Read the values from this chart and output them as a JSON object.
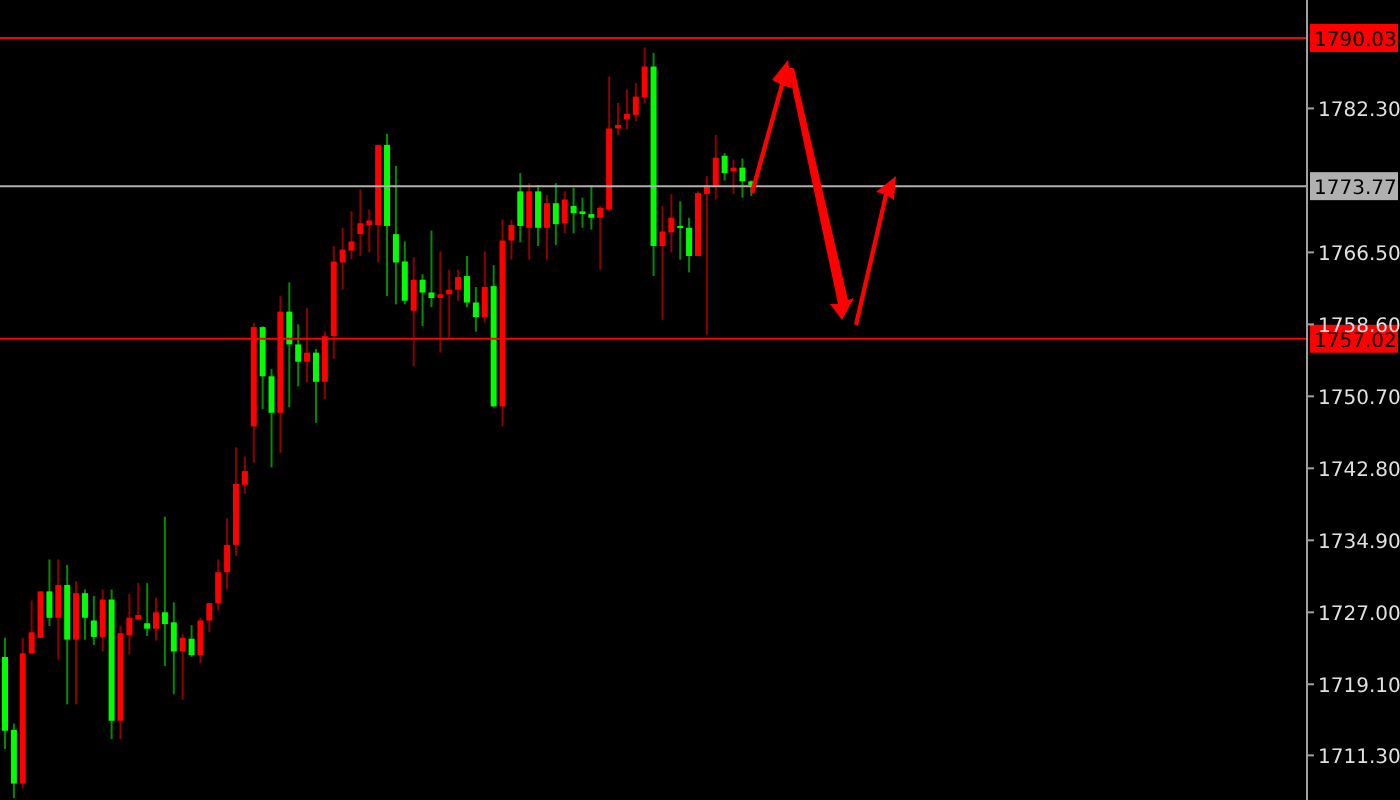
{
  "chart_data": {
    "type": "candlestick",
    "categories": [
      null,
      null,
      null,
      null,
      null,
      null,
      null,
      null,
      null,
      null,
      null,
      null,
      null,
      null,
      null,
      null,
      null,
      null,
      null,
      null,
      null,
      null,
      null,
      null,
      null,
      null,
      null,
      null,
      null,
      null,
      null,
      null,
      null,
      null,
      null,
      null,
      null,
      null,
      null,
      null,
      null,
      null,
      null,
      null,
      null,
      null,
      null,
      null,
      null,
      null,
      null,
      null,
      null,
      null,
      null,
      null,
      null,
      null,
      null,
      null,
      null,
      null,
      null,
      null,
      null,
      null,
      null,
      null,
      null,
      null,
      null,
      null,
      null,
      null,
      null,
      null,
      null,
      null,
      null,
      null,
      null,
      null,
      null,
      null,
      null,
      null,
      null,
      null,
      null,
      null,
      null,
      null,
      null,
      null,
      null,
      null,
      null,
      null,
      null,
      null,
      null,
      null,
      null,
      null,
      null,
      null,
      null,
      null,
      null,
      null,
      null,
      null,
      null,
      null,
      null,
      null,
      null,
      null,
      null,
      null,
      null,
      null,
      null,
      null,
      null,
      null,
      null,
      null,
      null,
      null,
      null,
      null,
      null,
      null,
      null,
      null,
      null,
      null,
      null,
      null,
      null,
      null,
      null,
      null,
      null,
      null,
      null
    ],
    "ohlc": [
      [
        1722.1,
        1724.2,
        1712.0,
        1714.0
      ],
      [
        1714.1,
        1714.8,
        1706.6,
        1708.2
      ],
      [
        1708.2,
        1724.2,
        1707.7,
        1722.5
      ],
      [
        1722.5,
        1728.3,
        1722.4,
        1724.8
      ],
      [
        1724.2,
        1729.3,
        1724.2,
        1729.3
      ],
      [
        1729.3,
        1732.8,
        1725.5,
        1726.4
      ],
      [
        1726.4,
        1732.8,
        1721.8,
        1730.0
      ],
      [
        1730.0,
        1732.2,
        1716.9,
        1724.0
      ],
      [
        1724.0,
        1730.4,
        1716.9,
        1729.1
      ],
      [
        1729.1,
        1729.5,
        1724.0,
        1726.4
      ],
      [
        1726.1,
        1728.8,
        1723.4,
        1724.3
      ],
      [
        1724.3,
        1729.5,
        1722.7,
        1728.4
      ],
      [
        1728.4,
        1729.5,
        1713.1,
        1715.1
      ],
      [
        1715.1,
        1725.5,
        1713.1,
        1724.7
      ],
      [
        1724.5,
        1729.0,
        1722.4,
        1726.4
      ],
      [
        1726.2,
        1730.2,
        1726.2,
        1726.7
      ],
      [
        1725.8,
        1730.2,
        1724.4,
        1725.2
      ],
      [
        1725.2,
        1728.6,
        1723.9,
        1727.0
      ],
      [
        1727.0,
        1737.5,
        1721.1,
        1725.7
      ],
      [
        1725.9,
        1728.1,
        1718.0,
        1722.7
      ],
      [
        1722.7,
        1724.6,
        1717.4,
        1724.2
      ],
      [
        1724.1,
        1725.6,
        1722.1,
        1722.3
      ],
      [
        1722.3,
        1726.4,
        1721.4,
        1726.1
      ],
      [
        1726.1,
        1728.0,
        1724.8,
        1728.0
      ],
      [
        1728.0,
        1732.8,
        1727.2,
        1731.4
      ],
      [
        1731.4,
        1737.3,
        1729.5,
        1734.4
      ],
      [
        1734.4,
        1745.1,
        1733.2,
        1741.1
      ],
      [
        1741.0,
        1744.1,
        1740.0,
        1742.5
      ],
      [
        1747.4,
        1758.8,
        1743.4,
        1758.3
      ],
      [
        1758.3,
        1758.4,
        1749.3,
        1752.9
      ],
      [
        1752.9,
        1753.7,
        1742.9,
        1748.9
      ],
      [
        1748.9,
        1761.7,
        1744.5,
        1760.0
      ],
      [
        1760.0,
        1763.2,
        1749.5,
        1756.4
      ],
      [
        1756.4,
        1758.6,
        1751.8,
        1754.5
      ],
      [
        1754.5,
        1760.4,
        1752.2,
        1755.5
      ],
      [
        1755.5,
        1755.9,
        1747.8,
        1752.3
      ],
      [
        1752.3,
        1757.8,
        1750.4,
        1757.3
      ],
      [
        1757.3,
        1767.2,
        1754.8,
        1765.5
      ],
      [
        1765.4,
        1769.2,
        1762.4,
        1766.8
      ],
      [
        1766.7,
        1771.0,
        1765.7,
        1767.7
      ],
      [
        1768.5,
        1773.4,
        1766.1,
        1769.7
      ],
      [
        1769.5,
        1771.2,
        1766.5,
        1770.0
      ],
      [
        1769.5,
        1778.3,
        1765.4,
        1778.3
      ],
      [
        1778.3,
        1779.5,
        1761.7,
        1769.4
      ],
      [
        1768.5,
        1776.0,
        1760.8,
        1765.4
      ],
      [
        1765.5,
        1767.7,
        1760.8,
        1761.2
      ],
      [
        1760.1,
        1766.0,
        1754.0,
        1763.5
      ],
      [
        1763.5,
        1764.1,
        1758.4,
        1762.1
      ],
      [
        1762.1,
        1768.9,
        1760.5,
        1761.5
      ],
      [
        1761.5,
        1766.6,
        1755.5,
        1761.9
      ],
      [
        1761.9,
        1764.6,
        1757.1,
        1762.4
      ],
      [
        1762.4,
        1764.6,
        1761.2,
        1763.8
      ],
      [
        1763.9,
        1766.1,
        1760.5,
        1761.0
      ],
      [
        1761.0,
        1762.7,
        1757.8,
        1759.4
      ],
      [
        1759.4,
        1766.6,
        1758.8,
        1762.7
      ],
      [
        1762.8,
        1765.1,
        1749.5,
        1749.6
      ],
      [
        1749.6,
        1770.1,
        1747.4,
        1767.8
      ],
      [
        1767.8,
        1770.1,
        1765.7,
        1769.5
      ],
      [
        1773.2,
        1775.2,
        1767.6,
        1769.4
      ],
      [
        1769.2,
        1774.1,
        1765.7,
        1773.2
      ],
      [
        1773.2,
        1773.9,
        1767.2,
        1769.2
      ],
      [
        1769.2,
        1772.8,
        1765.7,
        1771.9
      ],
      [
        1771.9,
        1774.1,
        1767.3,
        1769.6
      ],
      [
        1769.7,
        1773.2,
        1768.6,
        1772.3
      ],
      [
        1771.6,
        1773.6,
        1768.6,
        1770.8
      ],
      [
        1771.0,
        1772.5,
        1769.2,
        1770.7
      ],
      [
        1770.7,
        1773.9,
        1769.0,
        1770.3
      ],
      [
        1770.3,
        1771.6,
        1764.6,
        1771.4
      ],
      [
        1771.2,
        1785.8,
        1771.0,
        1780.1
      ],
      [
        1780.1,
        1782.9,
        1779.4,
        1780.5
      ],
      [
        1781.1,
        1784.4,
        1780.0,
        1781.7
      ],
      [
        1781.6,
        1785.1,
        1780.9,
        1783.6
      ],
      [
        1783.5,
        1789.0,
        1782.9,
        1786.9
      ],
      [
        1786.9,
        1788.4,
        1763.9,
        1767.2
      ],
      [
        1767.2,
        1771.6,
        1759.1,
        1768.8
      ],
      [
        1768.7,
        1772.9,
        1766.5,
        1770.3
      ],
      [
        1769.4,
        1772.1,
        1765.7,
        1769.2
      ],
      [
        1769.2,
        1770.3,
        1764.3,
        1766.1
      ],
      [
        1766.1,
        1773.2,
        1766.1,
        1773.0
      ],
      [
        1772.9,
        1774.9,
        1757.5,
        1773.9
      ],
      [
        1773.8,
        1779.4,
        1772.3,
        1776.9
      ],
      [
        1777.1,
        1777.4,
        1774.4,
        1775.2
      ],
      [
        1775.4,
        1776.7,
        1772.9,
        1775.8
      ],
      [
        1775.8,
        1776.8,
        1772.5,
        1774.3
      ],
      [
        1774.3,
        1774.4,
        1772.7,
        1773.9
      ],
      null,
      null,
      null,
      null,
      null,
      null,
      null,
      null,
      null,
      null,
      null,
      null,
      null,
      null,
      null,
      null,
      null,
      null,
      null,
      null,
      null,
      null,
      null,
      null,
      null,
      null,
      null,
      null,
      null,
      null,
      null,
      null,
      null,
      null,
      null,
      null,
      null,
      null,
      null,
      null,
      null,
      null,
      null,
      null,
      null,
      null,
      null,
      null,
      null,
      null,
      null,
      null,
      null,
      null,
      null,
      null,
      null,
      null,
      null,
      null,
      null,
      null
    ],
    "colors": [
      "#00ff00",
      "#00ff00",
      "#ff0000",
      "#ff0000",
      "#ff0000",
      "#00ff00",
      "#ff0000",
      "#00ff00",
      "#ff0000",
      "#00ff00",
      "#00ff00",
      "#ff0000",
      "#00ff00",
      "#ff0000",
      "#ff0000",
      "#ff0000",
      "#00ff00",
      "#ff0000",
      "#00ff00",
      "#00ff00",
      "#ff0000",
      "#00ff00",
      "#ff0000",
      "#ff0000",
      "#ff0000",
      "#ff0000",
      "#ff0000",
      "#ff0000",
      "#ff0000",
      "#00ff00",
      "#00ff00",
      "#ff0000",
      "#00ff00",
      "#00ff00",
      "#ff0000",
      "#00ff00",
      "#ff0000",
      "#ff0000",
      "#ff0000",
      "#ff0000",
      "#ff0000",
      "#ff0000",
      "#ff0000",
      "#00ff00",
      "#00ff00",
      "#00ff00",
      "#ff0000",
      "#00ff00",
      "#00ff00",
      "#ff0000",
      "#ff0000",
      "#ff0000",
      "#00ff00",
      "#00ff00",
      "#ff0000",
      "#00ff00",
      "#ff0000",
      "#ff0000",
      "#00ff00",
      "#ff0000",
      "#00ff00",
      "#ff0000",
      "#00ff00",
      "#ff0000",
      "#00ff00",
      "#00ff00",
      "#00ff00",
      "#ff0000",
      "#ff0000",
      "#ff0000",
      "#ff0000",
      "#ff0000",
      "#ff0000",
      "#00ff00",
      "#ff0000",
      "#ff0000",
      "#00ff00",
      "#00ff00",
      "#ff0000",
      "#ff0000",
      "#ff0000",
      "#00ff00",
      "#ff0000",
      "#00ff00",
      "#00ff00",
      null,
      null,
      null,
      null,
      null,
      null,
      null,
      null,
      null,
      null,
      null,
      null,
      null,
      null,
      null,
      null,
      null,
      null,
      null,
      null,
      null,
      null,
      null,
      null,
      null,
      null,
      null,
      null,
      null,
      null,
      null,
      null,
      null,
      null,
      null,
      null,
      null,
      null,
      null,
      null,
      null,
      null,
      null,
      null,
      null,
      null,
      null,
      null,
      null,
      null,
      null,
      null,
      null,
      null,
      null,
      null,
      null,
      null,
      null,
      null,
      null,
      null
    ],
    "ylim": [
      1706.4,
      1794.2
    ],
    "yticks": [
      {
        "value": 1711.3,
        "label": "1711.30"
      },
      {
        "value": 1719.1,
        "label": "1719.10"
      },
      {
        "value": 1727.0,
        "label": "1727.00"
      },
      {
        "value": 1734.9,
        "label": "1734.90"
      },
      {
        "value": 1742.8,
        "label": "1742.80"
      },
      {
        "value": 1750.7,
        "label": "1750.70"
      },
      {
        "value": 1758.6,
        "label": "1758.60"
      },
      {
        "value": 1766.5,
        "label": "1766.50"
      },
      {
        "value": 1782.3,
        "label": "1782.30"
      }
    ],
    "tick_labels": "y",
    "ref_lines": [
      {
        "axis": "y",
        "value": 1790.03,
        "label": "1790.03",
        "color": "#ff0000"
      },
      {
        "axis": "y",
        "value": 1773.77,
        "label": "1773.77",
        "color": "#b0b0b0"
      },
      {
        "axis": "y",
        "value": 1757.02,
        "label": "1757.02",
        "color": "#ff0000"
      }
    ]
  }
}
